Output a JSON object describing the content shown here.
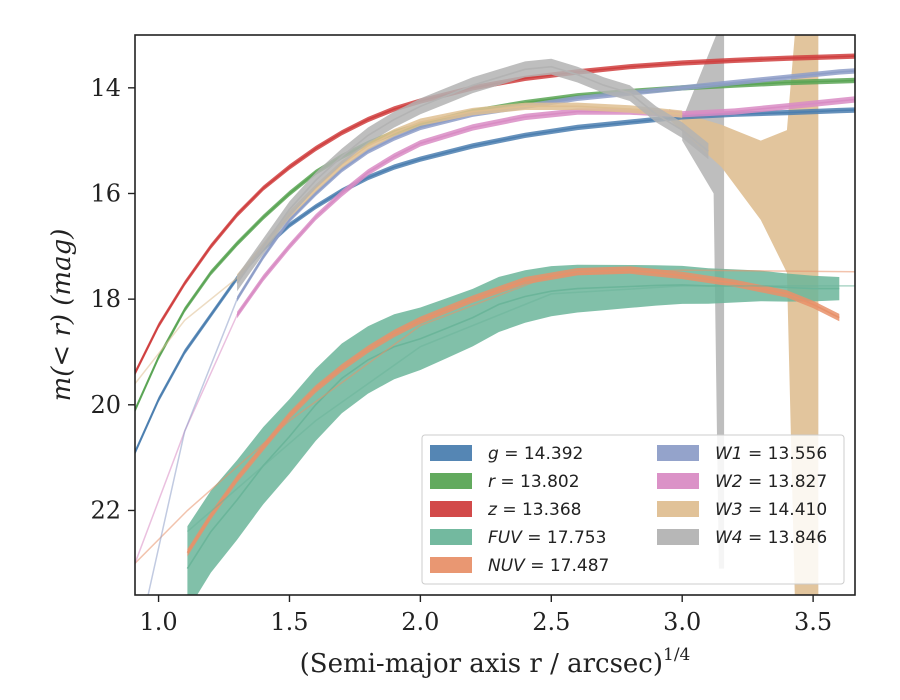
{
  "chart_data": {
    "type": "line",
    "xlabel": "(Semi-major axis r / arcsec)",
    "xlabel_sup": "1/4",
    "ylabel": "m(< r) (mag)",
    "xlim": [
      0.91,
      3.66
    ],
    "ylim": [
      23.6,
      13.0
    ],
    "y_inverted": true,
    "xticks": [
      1.0,
      1.5,
      2.0,
      2.5,
      3.0,
      3.5
    ],
    "xtick_labels": [
      "1.0",
      "1.5",
      "2.0",
      "2.5",
      "3.0",
      "3.5"
    ],
    "yticks": [
      14,
      16,
      18,
      20,
      22
    ],
    "ytick_labels": [
      "14",
      "16",
      "18",
      "20",
      "22"
    ],
    "grid": false,
    "legend_position": "lower-right",
    "series": [
      {
        "name": "g",
        "legend_value": "14.392",
        "color": "#4c7fb0",
        "points": [
          [
            0.91,
            20.9
          ],
          [
            1.0,
            19.9
          ],
          [
            1.1,
            19.0
          ],
          [
            1.2,
            18.3
          ],
          [
            1.3,
            17.6
          ],
          [
            1.4,
            17.05
          ],
          [
            1.5,
            16.6
          ],
          [
            1.6,
            16.25
          ],
          [
            1.7,
            15.95
          ],
          [
            1.8,
            15.7
          ],
          [
            1.9,
            15.5
          ],
          [
            2.0,
            15.35
          ],
          [
            2.2,
            15.1
          ],
          [
            2.4,
            14.9
          ],
          [
            2.6,
            14.75
          ],
          [
            2.8,
            14.65
          ],
          [
            3.0,
            14.55
          ],
          [
            3.2,
            14.5
          ],
          [
            3.4,
            14.47
          ],
          [
            3.6,
            14.43
          ],
          [
            3.66,
            14.42
          ]
        ],
        "ribbon": 0.05
      },
      {
        "name": "r",
        "legend_value": "13.802",
        "color": "#5aa555",
        "points": [
          [
            0.91,
            20.1
          ],
          [
            1.0,
            19.1
          ],
          [
            1.1,
            18.2
          ],
          [
            1.2,
            17.5
          ],
          [
            1.3,
            16.95
          ],
          [
            1.4,
            16.45
          ],
          [
            1.5,
            16.0
          ],
          [
            1.6,
            15.6
          ],
          [
            1.7,
            15.3
          ],
          [
            1.8,
            15.05
          ],
          [
            1.9,
            14.85
          ],
          [
            2.0,
            14.7
          ],
          [
            2.2,
            14.45
          ],
          [
            2.4,
            14.28
          ],
          [
            2.6,
            14.15
          ],
          [
            2.8,
            14.07
          ],
          [
            3.0,
            14.0
          ],
          [
            3.2,
            13.95
          ],
          [
            3.4,
            13.9
          ],
          [
            3.6,
            13.87
          ],
          [
            3.66,
            13.86
          ]
        ],
        "ribbon": 0.05
      },
      {
        "name": "z",
        "legend_value": "13.368",
        "color": "#d04040",
        "points": [
          [
            0.91,
            19.4
          ],
          [
            1.0,
            18.5
          ],
          [
            1.1,
            17.7
          ],
          [
            1.2,
            17.0
          ],
          [
            1.3,
            16.4
          ],
          [
            1.4,
            15.9
          ],
          [
            1.5,
            15.5
          ],
          [
            1.6,
            15.15
          ],
          [
            1.7,
            14.85
          ],
          [
            1.8,
            14.6
          ],
          [
            1.9,
            14.4
          ],
          [
            2.0,
            14.25
          ],
          [
            2.2,
            14.0
          ],
          [
            2.4,
            13.82
          ],
          [
            2.6,
            13.7
          ],
          [
            2.8,
            13.6
          ],
          [
            3.0,
            13.53
          ],
          [
            3.2,
            13.48
          ],
          [
            3.4,
            13.44
          ],
          [
            3.6,
            13.41
          ],
          [
            3.66,
            13.4
          ]
        ],
        "ribbon": 0.05
      },
      {
        "name": "FUV",
        "legend_value": "17.753",
        "color": "#6bb59a",
        "points": [
          [
            1.11,
            23.1
          ],
          [
            1.2,
            22.4
          ],
          [
            1.3,
            21.8
          ],
          [
            1.4,
            21.15
          ],
          [
            1.5,
            20.6
          ],
          [
            1.6,
            20.0
          ],
          [
            1.7,
            19.5
          ],
          [
            1.8,
            19.15
          ],
          [
            1.9,
            18.9
          ],
          [
            2.0,
            18.75
          ],
          [
            2.1,
            18.55
          ],
          [
            2.2,
            18.35
          ],
          [
            2.3,
            18.1
          ],
          [
            2.4,
            17.95
          ],
          [
            2.5,
            17.85
          ],
          [
            2.6,
            17.8
          ],
          [
            2.7,
            17.78
          ],
          [
            2.8,
            17.76
          ],
          [
            2.9,
            17.74
          ],
          [
            3.0,
            17.73
          ],
          [
            3.1,
            17.75
          ],
          [
            3.2,
            17.75
          ],
          [
            3.3,
            17.75
          ],
          [
            3.4,
            17.78
          ],
          [
            3.5,
            17.8
          ],
          [
            3.6,
            17.8
          ]
        ],
        "ribbon": 0.22,
        "ribbon_start": 0.8
      },
      {
        "name": "NUV",
        "legend_value": "17.487",
        "color": "#e8916a",
        "points": [
          [
            1.11,
            22.8
          ],
          [
            1.2,
            22.1
          ],
          [
            1.3,
            21.4
          ],
          [
            1.4,
            20.8
          ],
          [
            1.5,
            20.2
          ],
          [
            1.6,
            19.7
          ],
          [
            1.7,
            19.3
          ],
          [
            1.8,
            18.95
          ],
          [
            1.9,
            18.65
          ],
          [
            2.0,
            18.4
          ],
          [
            2.2,
            18.0
          ],
          [
            2.4,
            17.65
          ],
          [
            2.6,
            17.48
          ],
          [
            2.8,
            17.45
          ],
          [
            3.0,
            17.55
          ],
          [
            3.2,
            17.7
          ],
          [
            3.4,
            17.9
          ],
          [
            3.5,
            18.1
          ],
          [
            3.6,
            18.35
          ]
        ],
        "ribbon": 0.07
      },
      {
        "name": "W1",
        "legend_value": "13.556",
        "color": "#8e9ec8",
        "points": [
          [
            1.3,
            18.0
          ],
          [
            1.4,
            17.2
          ],
          [
            1.5,
            16.5
          ],
          [
            1.6,
            16.0
          ],
          [
            1.7,
            15.55
          ],
          [
            1.8,
            15.2
          ],
          [
            1.9,
            14.95
          ],
          [
            2.0,
            14.75
          ],
          [
            2.2,
            14.5
          ],
          [
            2.4,
            14.35
          ],
          [
            2.6,
            14.2
          ],
          [
            2.8,
            14.1
          ],
          [
            3.0,
            14.0
          ],
          [
            3.2,
            13.9
          ],
          [
            3.4,
            13.8
          ],
          [
            3.6,
            13.7
          ],
          [
            3.66,
            13.68
          ]
        ],
        "ribbon": 0.05
      },
      {
        "name": "W2",
        "legend_value": "13.827",
        "color": "#d98cc4",
        "points": [
          [
            1.3,
            18.3
          ],
          [
            1.4,
            17.6
          ],
          [
            1.5,
            17.0
          ],
          [
            1.6,
            16.45
          ],
          [
            1.7,
            16.0
          ],
          [
            1.8,
            15.6
          ],
          [
            1.9,
            15.3
          ],
          [
            2.0,
            15.05
          ],
          [
            2.2,
            14.75
          ],
          [
            2.4,
            14.55
          ],
          [
            2.6,
            14.45
          ],
          [
            2.8,
            14.45
          ],
          [
            3.0,
            14.5
          ],
          [
            3.2,
            14.45
          ],
          [
            3.4,
            14.35
          ],
          [
            3.6,
            14.25
          ],
          [
            3.66,
            14.22
          ]
        ],
        "ribbon": 0.06
      },
      {
        "name": "W3",
        "legend_value": "14.410",
        "color": "#dfbf92",
        "points": [
          [
            1.3,
            17.6
          ],
          [
            1.4,
            17.0
          ],
          [
            1.5,
            16.4
          ],
          [
            1.6,
            15.9
          ],
          [
            1.7,
            15.45
          ],
          [
            1.8,
            15.1
          ],
          [
            1.9,
            14.85
          ],
          [
            2.0,
            14.65
          ],
          [
            2.2,
            14.45
          ],
          [
            2.4,
            14.35
          ],
          [
            2.6,
            14.35
          ],
          [
            2.8,
            14.4
          ],
          [
            2.9,
            14.45
          ],
          [
            3.0,
            14.5
          ]
        ],
        "ribbon": 0.07
      },
      {
        "name": "W4",
        "legend_value": "13.846",
        "color": "#b3b3b3",
        "points": [
          [
            1.3,
            17.7
          ],
          [
            1.4,
            17.0
          ],
          [
            1.5,
            16.3
          ],
          [
            1.6,
            15.75
          ],
          [
            1.7,
            15.3
          ],
          [
            1.8,
            14.9
          ],
          [
            1.9,
            14.6
          ],
          [
            2.0,
            14.35
          ],
          [
            2.1,
            14.15
          ],
          [
            2.2,
            13.95
          ],
          [
            2.3,
            13.8
          ],
          [
            2.4,
            13.65
          ],
          [
            2.5,
            13.6
          ],
          [
            2.6,
            13.75
          ],
          [
            2.7,
            13.95
          ],
          [
            2.8,
            14.1
          ],
          [
            2.9,
            14.5
          ],
          [
            3.0,
            14.8
          ],
          [
            3.1,
            15.2
          ]
        ],
        "ribbon": 0.15
      }
    ]
  },
  "legend": {
    "left": [
      {
        "sym": "g",
        "text": " = 14.392",
        "color": "#4c7fb0"
      },
      {
        "sym": "r",
        "text": " = 13.802",
        "color": "#5aa555"
      },
      {
        "sym": "z",
        "text": " = 13.368",
        "color": "#d04040"
      },
      {
        "sym": "FUV",
        "text": " = 17.753",
        "color": "#6bb59a"
      },
      {
        "sym": "NUV",
        "text": " = 17.487",
        "color": "#e8916a"
      }
    ],
    "right": [
      {
        "sym": "W1",
        "text": " = 13.556",
        "color": "#8e9ec8"
      },
      {
        "sym": "W2",
        "text": " = 13.827",
        "color": "#d98cc4"
      },
      {
        "sym": "W3",
        "text": " = 14.410",
        "color": "#dfbf92"
      },
      {
        "sym": "W4",
        "text": " = 13.846",
        "color": "#b3b3b3"
      }
    ]
  }
}
